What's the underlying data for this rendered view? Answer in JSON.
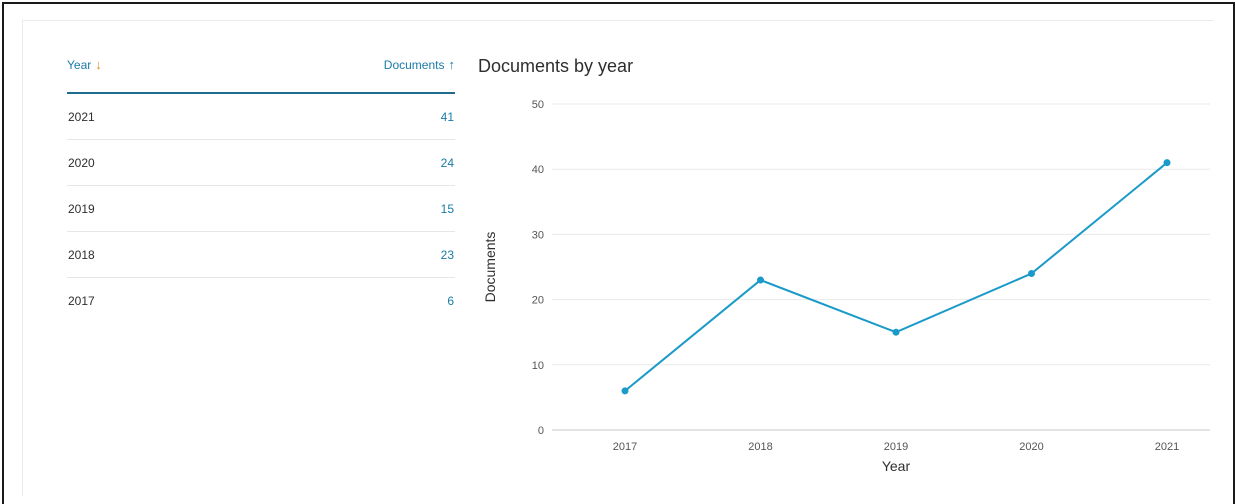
{
  "table": {
    "headers": {
      "year": "Year",
      "documents": "Documents"
    },
    "rows": [
      {
        "year": "2021",
        "documents": "41"
      },
      {
        "year": "2020",
        "documents": "24"
      },
      {
        "year": "2019",
        "documents": "15"
      },
      {
        "year": "2018",
        "documents": "23"
      },
      {
        "year": "2017",
        "documents": "6"
      }
    ]
  },
  "colors": {
    "line": "#1a9ac9",
    "link": "#1b7ba8",
    "sort_down": "#e8871e"
  },
  "chart_data": {
    "type": "line",
    "title": "Documents by year",
    "xlabel": "Year",
    "ylabel": "Documents",
    "categories": [
      "2017",
      "2018",
      "2019",
      "2020",
      "2021"
    ],
    "values": [
      6,
      23,
      15,
      24,
      41
    ],
    "ylim": [
      0,
      50
    ],
    "yticks": [
      0,
      10,
      20,
      30,
      40,
      50
    ],
    "grid": "horizontal"
  }
}
